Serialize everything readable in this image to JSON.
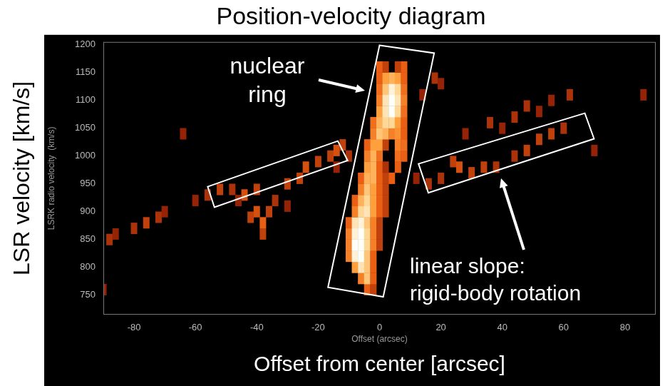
{
  "chart_data": {
    "type": "heatmap",
    "title": "Position-velocity diagram",
    "x_label": "Offset (arcsec)",
    "y_label": "LSRK radio velocity  (km/s)",
    "overlay_labels": {
      "x": "Offset from center [arcsec]",
      "y": "LSR velocity [km/s]"
    },
    "annotations": [
      {
        "lines": [
          "nuclear",
          "ring"
        ]
      },
      {
        "lines": [
          "linear slope:",
          "rigid-body rotation"
        ]
      }
    ],
    "boxes": [
      [
        [
          0,
          1199
        ],
        [
          17.8,
          1185
        ],
        [
          1.2,
          747
        ],
        [
          -16.8,
          764
        ]
      ],
      [
        [
          -56,
          945
        ],
        [
          -13.6,
          1027
        ],
        [
          -10.4,
          992
        ],
        [
          -53.8,
          908
        ]
      ],
      [
        [
          12.7,
          986
        ],
        [
          66.9,
          1077
        ],
        [
          69.9,
          1031
        ],
        [
          15.9,
          934
        ]
      ]
    ],
    "xlim": [
      -90,
      90
    ],
    "xticks": [
      -80,
      -60,
      -40,
      -20,
      0,
      20,
      40,
      60,
      80
    ],
    "ylim": [
      715,
      1205
    ],
    "yticks": [
      750,
      800,
      850,
      900,
      950,
      1000,
      1050,
      1100,
      1150,
      1200
    ],
    "grid": false,
    "x": [
      -4,
      -2,
      -6,
      -4,
      -2,
      -8,
      -6,
      -4,
      -2,
      -10,
      -8,
      -6,
      -4,
      -2,
      -10,
      -8,
      -6,
      -4,
      -2,
      0,
      -10,
      -8,
      -6,
      -4,
      -2,
      0,
      -10,
      -8,
      -6,
      -4,
      -2,
      0,
      -8,
      -6,
      -4,
      -2,
      0,
      2,
      -8,
      -6,
      -4,
      -2,
      0,
      2,
      -6,
      -4,
      -2,
      0,
      2,
      -6,
      -4,
      -2,
      0,
      2,
      4,
      -4,
      -2,
      0,
      2,
      6,
      -4,
      -2,
      0,
      6,
      8,
      -4,
      -2,
      0,
      2,
      6,
      8,
      -2,
      0,
      2,
      4,
      6,
      8,
      -2,
      0,
      2,
      4,
      6,
      8,
      0,
      2,
      4,
      6,
      8,
      0,
      2,
      4,
      6,
      8,
      0,
      2,
      4,
      6,
      8,
      0,
      2,
      4,
      6,
      8,
      0,
      2,
      6,
      8,
      -88,
      -86,
      -80,
      -76,
      -72,
      -70,
      -60,
      -56,
      -52,
      -48,
      -44,
      -40,
      -40,
      -38,
      -42,
      -36,
      -38,
      -34,
      -30,
      -26,
      -24,
      -20,
      -16,
      -14,
      -12,
      -10,
      -14,
      -46,
      -30,
      12,
      16,
      20,
      24,
      26,
      30,
      34,
      38,
      44,
      48,
      52,
      56,
      60,
      28,
      36,
      40,
      44,
      48,
      52,
      56,
      62,
      18,
      20,
      14,
      86,
      -90,
      -64,
      70
    ],
    "values": [
      760,
      760,
      780,
      780,
      780,
      800,
      800,
      800,
      800,
      820,
      820,
      820,
      820,
      820,
      840,
      840,
      840,
      840,
      840,
      840,
      860,
      860,
      860,
      860,
      860,
      860,
      880,
      880,
      880,
      880,
      880,
      880,
      900,
      900,
      900,
      900,
      900,
      900,
      920,
      920,
      920,
      920,
      920,
      920,
      940,
      940,
      940,
      940,
      940,
      960,
      960,
      960,
      960,
      960,
      960,
      980,
      980,
      980,
      980,
      980,
      1000,
      1000,
      1000,
      1000,
      1000,
      1020,
      1020,
      1020,
      1020,
      1020,
      1020,
      1040,
      1040,
      1040,
      1040,
      1040,
      1040,
      1060,
      1060,
      1060,
      1060,
      1060,
      1060,
      1080,
      1080,
      1080,
      1080,
      1080,
      1100,
      1100,
      1100,
      1100,
      1100,
      1120,
      1120,
      1120,
      1120,
      1120,
      1140,
      1140,
      1140,
      1140,
      1140,
      1160,
      1160,
      1160,
      1160,
      850,
      860,
      870,
      880,
      890,
      900,
      920,
      930,
      940,
      940,
      930,
      940,
      900,
      880,
      890,
      900,
      860,
      920,
      950,
      960,
      980,
      990,
      1000,
      1010,
      1020,
      1000,
      980,
      920,
      910,
      960,
      950,
      960,
      990,
      980,
      970,
      980,
      980,
      1000,
      1010,
      1030,
      1040,
      1050,
      1040,
      1060,
      1050,
      1070,
      1090,
      1080,
      1100,
      1110,
      1140,
      1130,
      1110,
      1110,
      760,
      1040,
      1010
    ],
    "intensity": [
      0.5,
      0.4,
      0.6,
      0.8,
      0.5,
      0.7,
      0.9,
      0.8,
      0.5,
      0.6,
      0.95,
      1,
      0.8,
      0.5,
      0.6,
      1,
      1,
      0.85,
      0.6,
      0.4,
      0.6,
      0.95,
      1,
      0.85,
      0.6,
      0.4,
      0.5,
      0.9,
      0.95,
      0.8,
      0.6,
      0.4,
      0.6,
      0.85,
      0.9,
      0.7,
      0.5,
      0.4,
      0.5,
      0.75,
      0.85,
      0.7,
      0.5,
      0.4,
      0.6,
      0.8,
      0.7,
      0.5,
      0.4,
      0.5,
      0.75,
      0.75,
      0.5,
      0.4,
      0.5,
      0.7,
      0.75,
      0.5,
      0.35,
      0.5,
      0.6,
      0.75,
      0.55,
      0.55,
      0.5,
      0.5,
      0.7,
      0.7,
      0.4,
      0.6,
      0.55,
      0.6,
      0.8,
      0.75,
      0.6,
      0.65,
      0.5,
      0.55,
      0.75,
      0.85,
      0.85,
      0.7,
      0.5,
      0.7,
      0.9,
      1,
      0.85,
      0.55,
      0.6,
      0.9,
      1,
      0.9,
      0.6,
      0.55,
      0.8,
      0.95,
      0.85,
      0.55,
      0.5,
      0.7,
      0.75,
      0.7,
      0.5,
      0.5,
      0.4,
      0.4,
      0.5,
      0.35,
      0.3,
      0.35,
      0.4,
      0.35,
      0.3,
      0.3,
      0.35,
      0.4,
      0.35,
      0.45,
      0.4,
      0.45,
      0.5,
      0.4,
      0.4,
      0.4,
      0.35,
      0.4,
      0.4,
      0.45,
      0.4,
      0.4,
      0.45,
      0.4,
      0.35,
      0.3,
      0.3,
      0.3,
      0.3,
      0.35,
      0.35,
      0.4,
      0.45,
      0.4,
      0.4,
      0.35,
      0.35,
      0.4,
      0.4,
      0.4,
      0.35,
      0.3,
      0.35,
      0.3,
      0.35,
      0.35,
      0.3,
      0.3,
      0.35,
      0.35,
      0.3,
      0.3,
      0.3,
      0.3,
      0.3,
      0.3
    ]
  }
}
